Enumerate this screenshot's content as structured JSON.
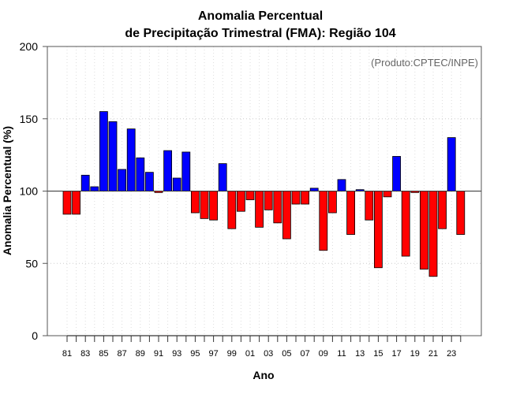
{
  "chart_data": {
    "type": "bar",
    "title_line1": "Anomalia Percentual",
    "title_line2": "de Precipitação Trimestral (FMA): Região 104",
    "xlabel": "Ano",
    "ylabel": "Anomalia Percentual (%)",
    "credit": "(Produto:CPTEC/INPE)",
    "baseline": 100,
    "ylim": [
      0,
      200
    ],
    "yticks": [
      0,
      50,
      100,
      150,
      200
    ],
    "grid": true,
    "colors": {
      "above": "#0000ff",
      "below": "#ff0000",
      "edge": "#000000"
    },
    "categories": [
      "81",
      "82",
      "83",
      "84",
      "85",
      "86",
      "87",
      "88",
      "89",
      "90",
      "91",
      "92",
      "93",
      "94",
      "95",
      "96",
      "97",
      "98",
      "99",
      "00",
      "01",
      "02",
      "03",
      "04",
      "05",
      "06",
      "07",
      "08",
      "09",
      "10",
      "11",
      "12",
      "13",
      "14",
      "15",
      "16",
      "17",
      "18",
      "19",
      "20",
      "21",
      "22",
      "23",
      "24"
    ],
    "xtick_labels": [
      "81",
      "83",
      "85",
      "87",
      "89",
      "91",
      "93",
      "95",
      "97",
      "99",
      "01",
      "03",
      "05",
      "07",
      "09",
      "11",
      "13",
      "15",
      "17",
      "19",
      "21",
      "23"
    ],
    "values": [
      84,
      84,
      111,
      103,
      155,
      148,
      115,
      143,
      123,
      113,
      99,
      128,
      109,
      127,
      85,
      81,
      80,
      119,
      74,
      86,
      94,
      75,
      87,
      78,
      67,
      91,
      91,
      102,
      59,
      85,
      108,
      70,
      101,
      80,
      47,
      96,
      124,
      55,
      99,
      46,
      41,
      74,
      137,
      70
    ]
  }
}
